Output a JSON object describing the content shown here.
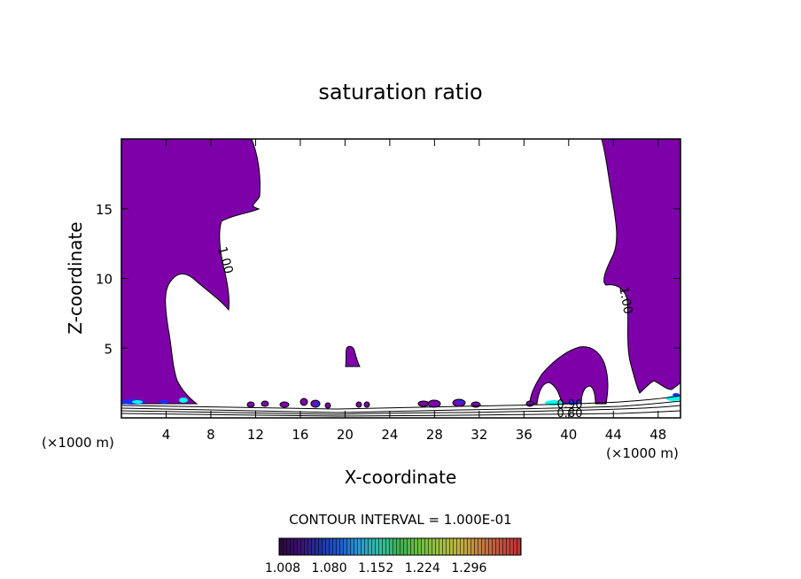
{
  "chart_data": {
    "type": "heatmap",
    "title": "saturation ratio",
    "xlabel": "X-coordinate",
    "ylabel": "Z-coordinate",
    "x_unit_left": "(×1000 m)",
    "x_unit_right": "(×1000 m)",
    "xlim": [
      0,
      50
    ],
    "ylim": [
      0,
      20
    ],
    "x_ticks": [
      4,
      8,
      12,
      16,
      20,
      24,
      28,
      32,
      36,
      40,
      44,
      48
    ],
    "y_ticks": [
      5,
      10,
      15
    ],
    "contour_labels": [
      {
        "text": "1.00",
        "x": 8.3,
        "z": 11.0,
        "rotate": 75
      },
      {
        "text": "1.00",
        "x": 44.4,
        "z": 9.1,
        "rotate": 80
      },
      {
        "text": "0.90",
        "x": 40.3,
        "z": 1.2,
        "rotate": 0
      },
      {
        "text": "0.80",
        "x": 40.3,
        "z": 0.45,
        "rotate": 0
      }
    ],
    "contour_interval_text": "CONTOUR INTERVAL = 1.000E-01",
    "colorbar": {
      "ticks": [
        "1.008",
        "1.080",
        "1.152",
        "1.224",
        "1.296"
      ],
      "colors": [
        "#2a0a3a",
        "#3c1070",
        "#2030a0",
        "#1a5ad0",
        "#2a9ad0",
        "#30c0a0",
        "#40b050",
        "#70c040",
        "#a0c040",
        "#c0b040",
        "#c08040",
        "#c05040",
        "#c03030"
      ]
    },
    "palette": {
      "fill": "#7d00a8",
      "cyan": "#00ffee",
      "blue": "#1a30ff",
      "frame": "#000000"
    }
  }
}
